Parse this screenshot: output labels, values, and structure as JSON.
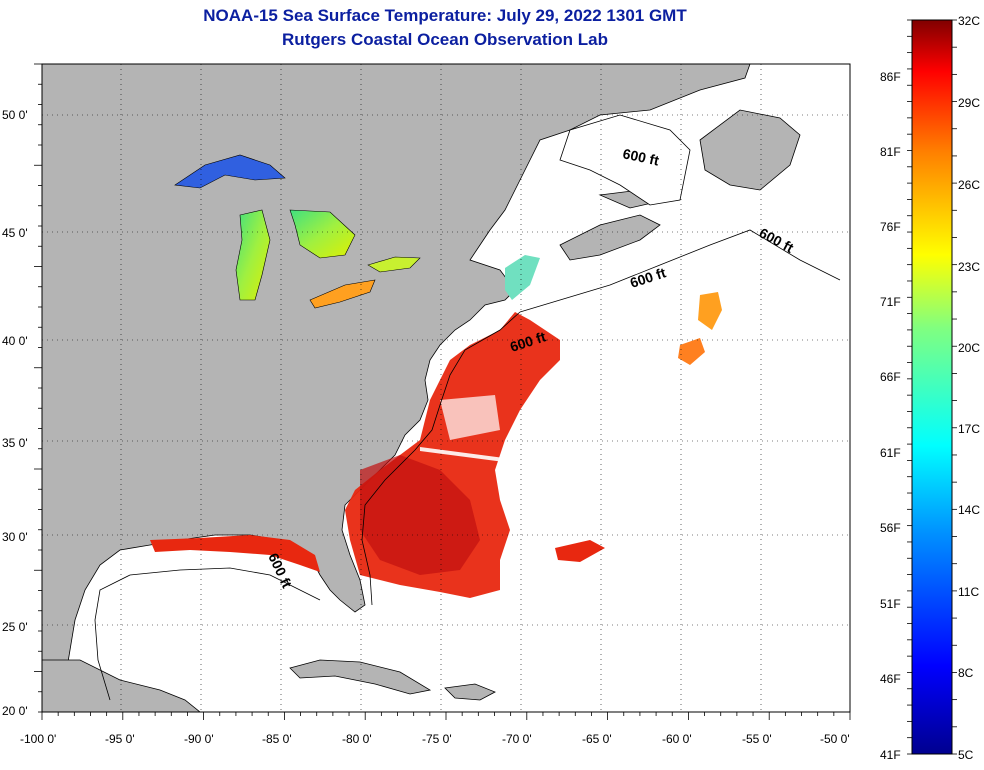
{
  "title": "NOAA-15 Sea Surface Temperature:  July 29, 2022 1301 GMT",
  "subtitle": "Rutgers Coastal Ocean Observation Lab",
  "map": {
    "lon_labels": [
      "-100 0'",
      "-95 0'",
      "-90 0'",
      "-85 0'",
      "-80 0'",
      "-75 0'",
      "-70 0'",
      "-65 0'",
      "-60 0'",
      "-55 0'",
      "-50 0'"
    ],
    "lat_labels": [
      "50 0'",
      "45 0'",
      "40 0'",
      "35 0'",
      "30 0'",
      "25 0'",
      "20 0'"
    ],
    "contour_labels": [
      "600 ft",
      "600 ft",
      "600 ft",
      "600 ft",
      "600 ft"
    ],
    "land_color": "#b4b4b4",
    "ocean_color": "#ffffff"
  },
  "colorbar": {
    "celsius_labels": [
      "32C",
      "29C",
      "26C",
      "23C",
      "20C",
      "17C",
      "14C",
      "11C",
      "8C",
      "5C"
    ],
    "fahrenheit_labels": [
      "86F",
      "81F",
      "76F",
      "71F",
      "66F",
      "61F",
      "56F",
      "51F",
      "46F",
      "41F"
    ]
  }
}
